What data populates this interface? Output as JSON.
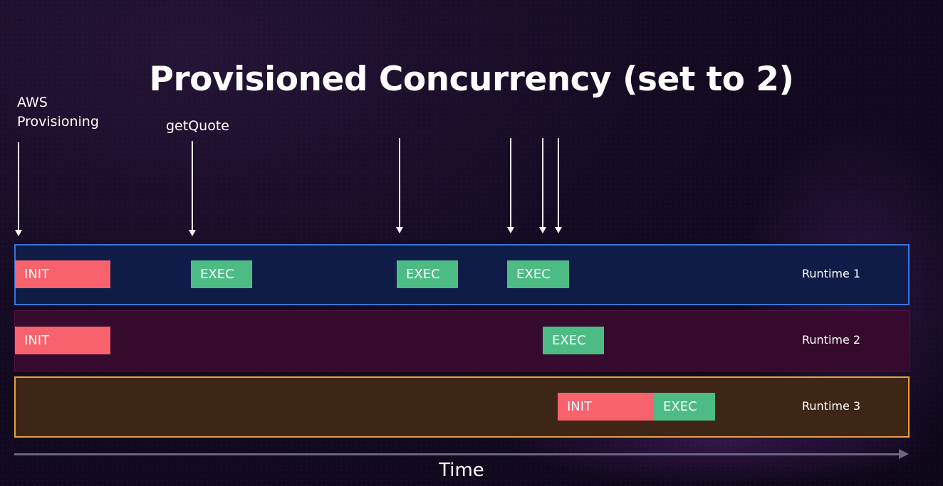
{
  "title": "Provisioned Concurrency (set to 2)",
  "annotations": {
    "aws_provisioning_line1": "AWS",
    "aws_provisioning_line2": "Provisioning",
    "get_quote": "getQuote"
  },
  "lanes": [
    {
      "label": "Runtime 1",
      "blocks": [
        {
          "kind": "INIT",
          "text": "INIT"
        },
        {
          "kind": "EXEC",
          "text": "EXEC"
        },
        {
          "kind": "EXEC",
          "text": "EXEC"
        },
        {
          "kind": "EXEC",
          "text": "EXEC"
        }
      ]
    },
    {
      "label": "Runtime 2",
      "blocks": [
        {
          "kind": "INIT",
          "text": "INIT"
        },
        {
          "kind": "EXEC",
          "text": "EXEC"
        }
      ]
    },
    {
      "label": "Runtime 3",
      "blocks": [
        {
          "kind": "INIT",
          "text": "INIT"
        },
        {
          "kind": "EXEC",
          "text": "EXEC"
        }
      ]
    }
  ],
  "time_axis_label": "Time",
  "colors": {
    "init": "#f7626c",
    "exec": "#4dbb84",
    "runtime1_border": "#3a74d6",
    "runtime3_border": "#e5a13d"
  }
}
